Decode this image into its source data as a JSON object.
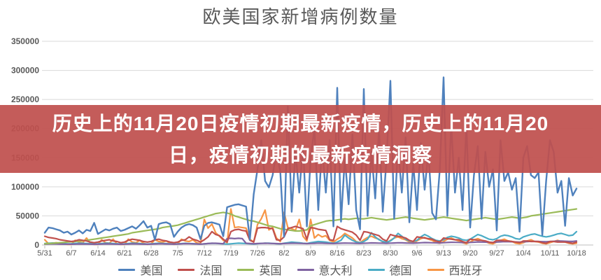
{
  "chart": {
    "title": "欧美国家新增病例数量"
  },
  "overlay": {
    "line1": "历史上的11月20日疫情初期最新疫情，历史上的11月20",
    "line2": "日，疫情初期的最新疫情洞察",
    "background_color": "#C0504D"
  },
  "chart_data": {
    "type": "line",
    "title": "欧美国家新增病例数量",
    "xlabel": "",
    "ylabel": "",
    "ylim": [
      0,
      350000
    ],
    "grid": true,
    "legend_position": "bottom",
    "y_ticks": [
      "0",
      "50000",
      "100000",
      "150000",
      "200000",
      "250000",
      "300000",
      "350000"
    ],
    "x_ticks": [
      "5/31",
      "6/7",
      "6/14",
      "6/21",
      "6/28",
      "7/5",
      "7/12",
      "7/19",
      "7/26",
      "8/2",
      "8/9",
      "8/16",
      "8/23",
      "8/30",
      "9/6",
      "9/13",
      "9/20",
      "9/27",
      "10/4",
      "10/11",
      "10/18"
    ],
    "n_points": 141,
    "axis_color": "#bfbfbf",
    "gridline_color": "#d9d9d9",
    "label_color": "#595959",
    "series": [
      {
        "id": "us",
        "name": "美国",
        "color": "#4F81BD",
        "width": 2.4,
        "values": [
          21000,
          30000,
          29000,
          27000,
          25000,
          21000,
          23000,
          18000,
          21000,
          25000,
          20000,
          26000,
          24000,
          38000,
          19000,
          23000,
          27000,
          25000,
          28000,
          30000,
          24000,
          26000,
          29000,
          32000,
          28000,
          34000,
          41000,
          30000,
          33000,
          9000,
          36000,
          38000,
          39000,
          36000,
          14000,
          23000,
          30000,
          34000,
          36000,
          34000,
          30000,
          10000,
          33000,
          38000,
          39000,
          37000,
          35000,
          15000,
          65000,
          67000,
          69000,
          70000,
          68000,
          66000,
          9000,
          87000,
          130000,
          180000,
          110000,
          99000,
          120000,
          160000,
          126000,
          14000,
          238000,
          57000,
          160000,
          90000,
          170000,
          32000,
          150000,
          200000,
          60000,
          170000,
          90000,
          180000,
          32000,
          270000,
          40000,
          150000,
          70000,
          190000,
          60000,
          27000,
          268000,
          50000,
          160000,
          80000,
          200000,
          57000,
          150000,
          282000,
          45000,
          170000,
          90000,
          185000,
          39000,
          140000,
          60000,
          175000,
          95000,
          160000,
          55000,
          44000,
          130000,
          288000,
          50000,
          207000,
          90000,
          150000,
          60000,
          205000,
          30000,
          120000,
          170000,
          45000,
          160000,
          100000,
          130000,
          25000,
          180000,
          110000,
          125000,
          95000,
          115000,
          23000,
          150000,
          170000,
          120000,
          115000,
          125000,
          17000,
          110000,
          180000,
          160000,
          90000,
          110000,
          33000,
          115000,
          85000,
          97000
        ]
      },
      {
        "id": "france",
        "name": "法国",
        "color": "#C0504D",
        "width": 2.2,
        "values": [
          15000,
          13000,
          12000,
          11000,
          9000,
          8000,
          7000,
          6000,
          7000,
          9000,
          8000,
          7000,
          5000,
          4000,
          5000,
          7000,
          8000,
          9000,
          7000,
          6000,
          4000,
          5000,
          8000,
          10000,
          9000,
          8000,
          6000,
          5000,
          6000,
          9000,
          10000,
          8000,
          7000,
          5000,
          4000,
          5000,
          8000,
          9000,
          14000,
          10000,
          8000,
          5000,
          9000,
          14000,
          23000,
          18000,
          16000,
          10000,
          5000,
          23000,
          26000,
          27000,
          25000,
          24000,
          8000,
          5000,
          29000,
          30000,
          30000,
          29000,
          28000,
          9000,
          8000,
          14000,
          28000,
          30000,
          32000,
          30000,
          28000,
          10000,
          30000,
          29000,
          27000,
          26000,
          25000,
          9000,
          8000,
          32000,
          28000,
          26000,
          24000,
          22000,
          17000,
          8000,
          23000,
          22000,
          20000,
          18000,
          16000,
          10000,
          7000,
          18000,
          16000,
          15000,
          14000,
          12000,
          8000,
          6000,
          14000,
          13000,
          12000,
          11000,
          10000,
          7000,
          5000,
          12000,
          11000,
          10000,
          9000,
          9000,
          6000,
          4000,
          10000,
          9000,
          8000,
          8000,
          7000,
          5000,
          4000,
          8000,
          8000,
          7000,
          7000,
          6000,
          5000,
          4000,
          7000,
          7000,
          6000,
          6000,
          6000,
          4000,
          3000,
          6000,
          6000,
          5000,
          5000,
          5000,
          4000,
          3000,
          5000
        ]
      },
      {
        "id": "uk",
        "name": "英国",
        "color": "#9BBB59",
        "width": 2.2,
        "values": [
          2000,
          2500,
          3000,
          3500,
          4000,
          4500,
          5000,
          5500,
          6000,
          7000,
          7500,
          8000,
          9000,
          10000,
          11000,
          12000,
          13000,
          14000,
          15000,
          16000,
          17000,
          18000,
          19000,
          21000,
          22000,
          23000,
          24000,
          25000,
          26000,
          27000,
          28000,
          30000,
          31000,
          32000,
          33000,
          34000,
          36000,
          38000,
          40000,
          42000,
          44000,
          46000,
          48000,
          50000,
          52000,
          54000,
          55000,
          56000,
          55000,
          53000,
          50000,
          48000,
          46000,
          44000,
          42000,
          41000,
          39000,
          37000,
          35000,
          33000,
          32000,
          30000,
          28000,
          27000,
          26000,
          25000,
          24000,
          24000,
          25000,
          26000,
          33000,
          35000,
          37000,
          39000,
          41000,
          42000,
          42000,
          43000,
          44000,
          45000,
          44000,
          45000,
          46000,
          45000,
          45000,
          46000,
          47000,
          46000,
          45000,
          44000,
          43000,
          44000,
          45000,
          46000,
          47000,
          48000,
          47000,
          46000,
          45000,
          44000,
          43000,
          44000,
          45000,
          46000,
          47000,
          48000,
          47000,
          46000,
          45000,
          44000,
          43000,
          42000,
          43000,
          44000,
          45000,
          46000,
          47000,
          46000,
          45000,
          44000,
          45000,
          46000,
          47000,
          48000,
          47000,
          46000,
          47000,
          48000,
          50000,
          51000,
          52000,
          53000,
          54000,
          55000,
          56000,
          57000,
          58000,
          59000,
          60000,
          61000,
          62000
        ]
      },
      {
        "id": "italy",
        "name": "意大利",
        "color": "#8064A2",
        "width": 2.2,
        "values": [
          1500,
          1800,
          2000,
          1900,
          1700,
          1500,
          1400,
          1300,
          1500,
          1800,
          1700,
          1600,
          1400,
          1200,
          1300,
          1600,
          1900,
          1800,
          1600,
          1400,
          1200,
          1400,
          1700,
          2000,
          1900,
          1700,
          1500,
          1300,
          1500,
          1800,
          2100,
          2000,
          1800,
          1600,
          1400,
          1600,
          2000,
          2400,
          2200,
          2000,
          1800,
          1500,
          2000,
          2500,
          3000,
          3000,
          2500,
          2200,
          11000,
          11500,
          11000,
          11500,
          11000,
          3000,
          2500,
          2200,
          2500,
          2800,
          3000,
          2800,
          2600,
          2400,
          2200,
          2500,
          2800,
          3000,
          3000,
          2800,
          2600,
          2400,
          2600,
          2900,
          3200,
          3100,
          2900,
          2700,
          2500,
          2800,
          3100,
          3400,
          3300,
          3100,
          2900,
          2700,
          3000,
          3300,
          3600,
          3500,
          3300,
          3100,
          2900,
          3200,
          3500,
          3800,
          3700,
          3500,
          3300,
          3100,
          3500,
          3800,
          4200,
          4100,
          3900,
          3700,
          3500,
          4000,
          4300,
          4700,
          4600,
          4400,
          4200,
          4000,
          4500,
          4800,
          5200,
          5100,
          4900,
          4700,
          4500,
          5000,
          5400,
          5800,
          5700,
          5500,
          5300,
          5100,
          5500,
          5900,
          6300,
          6200,
          6000,
          5800,
          5600,
          6000,
          6400,
          6800,
          6700,
          6500,
          6300,
          6100,
          7000
        ]
      },
      {
        "id": "germany",
        "name": "德国",
        "color": "#4BACC6",
        "width": 2.2,
        "values": [
          2500,
          3000,
          3500,
          3200,
          2800,
          2400,
          2000,
          2200,
          2800,
          3300,
          3000,
          2700,
          2300,
          1900,
          2100,
          2700,
          3200,
          3000,
          2600,
          2200,
          1800,
          2000,
          2600,
          3100,
          2900,
          2500,
          2100,
          1700,
          2000,
          2500,
          3000,
          2800,
          2400,
          2000,
          1600,
          1900,
          2400,
          2900,
          2700,
          2300,
          1900,
          1500,
          2000,
          2500,
          3000,
          2800,
          2400,
          2000,
          1600,
          2100,
          2600,
          3100,
          2900,
          2500,
          2100,
          1700,
          2200,
          2800,
          3300,
          3100,
          2700,
          2300,
          1900,
          3000,
          4000,
          5000,
          4500,
          4000,
          3000,
          2500,
          4000,
          5000,
          6000,
          5500,
          5000,
          4000,
          3000,
          5000,
          8000,
          17000,
          12000,
          8000,
          5000,
          4000,
          6000,
          10000,
          21000,
          14000,
          9000,
          6000,
          5000,
          7000,
          12000,
          20000,
          15000,
          10000,
          7000,
          6000,
          8000,
          14000,
          18000,
          15000,
          11000,
          8000,
          7000,
          9000,
          13000,
          15000,
          14000,
          12000,
          9000,
          8000,
          10000,
          14000,
          18000,
          16000,
          13000,
          10000,
          9000,
          11000,
          15000,
          17000,
          16000,
          14000,
          11000,
          10000,
          14000,
          16000,
          18000,
          19000,
          17000,
          15000,
          14000,
          15000,
          17000,
          19000,
          20000,
          18000,
          16000,
          17000,
          23000
        ]
      },
      {
        "id": "spain",
        "name": "西班牙",
        "color": "#F79646",
        "width": 2.2,
        "values": [
          9000,
          2000,
          3000,
          4000,
          3000,
          2000,
          1000,
          1000,
          8000,
          5000,
          4000,
          12000,
          3000,
          1000,
          1000,
          9000,
          4000,
          3000,
          10000,
          2000,
          1000,
          1000,
          10000,
          5000,
          4000,
          8000,
          3000,
          1000,
          2000,
          9000,
          6000,
          5000,
          7000,
          3000,
          1000,
          2000,
          10000,
          7000,
          6000,
          9000,
          4000,
          2000,
          44000,
          29000,
          36000,
          21000,
          15000,
          8000,
          4000,
          62000,
          30000,
          31000,
          30000,
          29000,
          10000,
          5000,
          35000,
          45000,
          60000,
          26000,
          30000,
          12000,
          6000,
          56000,
          30000,
          28000,
          25000,
          44000,
          15000,
          7000,
          44000,
          12000,
          18000,
          14000,
          16000,
          8000,
          5000,
          10000,
          14000,
          20000,
          16000,
          12000,
          6000,
          4000,
          9000,
          13000,
          15000,
          12000,
          10000,
          5000,
          3000,
          8000,
          12000,
          14000,
          11000,
          9000,
          5000,
          3000,
          7000,
          11000,
          13000,
          10000,
          8000,
          4000,
          3000,
          6000,
          10000,
          12000,
          9000,
          7000,
          4000,
          2000,
          5000,
          9000,
          11000,
          8000,
          6000,
          3000,
          2000,
          5000,
          8000,
          10000,
          7000,
          6000,
          3000,
          2000,
          4000,
          7000,
          9000,
          6000,
          5000,
          3000,
          2000,
          4000,
          6000,
          8000,
          6000,
          5000,
          3000,
          2000,
          3000
        ]
      }
    ]
  }
}
